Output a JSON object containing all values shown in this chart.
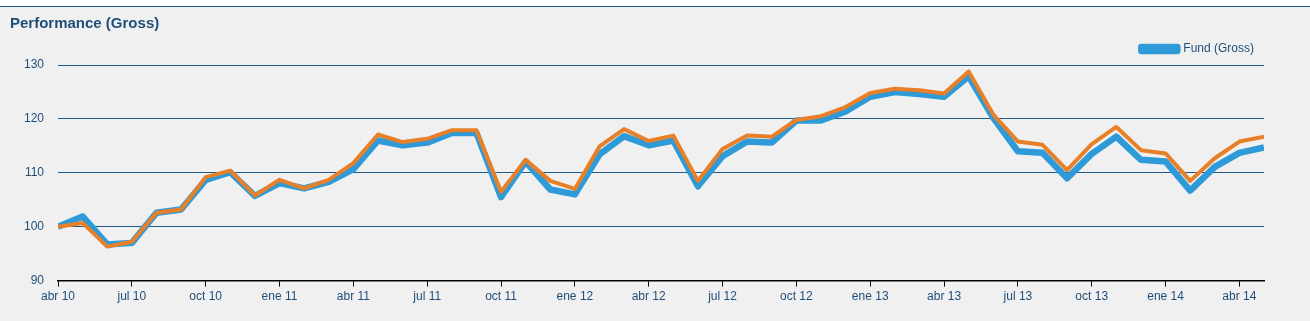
{
  "chart_data": {
    "type": "line",
    "title": "Performance (Gross)",
    "x": [
      "2010-04",
      "2010-05",
      "2010-06",
      "2010-07",
      "2010-08",
      "2010-09",
      "2010-10",
      "2010-11",
      "2010-12",
      "2011-01",
      "2011-02",
      "2011-03",
      "2011-04",
      "2011-05",
      "2011-06",
      "2011-07",
      "2011-08",
      "2011-09",
      "2011-10",
      "2011-11",
      "2011-12",
      "2012-01",
      "2012-02",
      "2012-03",
      "2012-04",
      "2012-05",
      "2012-06",
      "2012-07",
      "2012-08",
      "2012-09",
      "2012-10",
      "2012-11",
      "2012-12",
      "2013-01",
      "2013-02",
      "2013-03",
      "2013-04",
      "2013-05",
      "2013-06",
      "2013-07",
      "2013-08",
      "2013-09",
      "2013-10",
      "2013-11",
      "2013-12",
      "2014-01",
      "2014-02",
      "2014-03",
      "2014-04",
      "2014-05"
    ],
    "series": [
      {
        "name": "Fund (Gross)",
        "color": "#2e9ad8",
        "values": [
          100,
          101.9,
          96.7,
          97.0,
          102.6,
          103.2,
          108.7,
          110.1,
          105.7,
          108.1,
          107.1,
          108.3,
          110.7,
          116.0,
          115.1,
          115.6,
          117.4,
          117.4,
          105.5,
          112.1,
          106.9,
          106.0,
          113.4,
          116.8,
          115.1,
          116.0,
          107.5,
          113.1,
          115.8,
          115.6,
          119.7,
          119.7,
          121.4,
          124.1,
          125.0,
          124.6,
          124.1,
          127.9,
          120.2,
          114.0,
          113.7,
          109.0,
          113.5,
          116.7,
          112.4,
          112.1,
          106.7,
          111.1,
          113.7,
          114.7
        ]
      },
      {
        "color": "#e8802a",
        "values": [
          100,
          100.7,
          96.3,
          97.2,
          102.6,
          103.2,
          109.2,
          110.4,
          105.8,
          108.7,
          107.1,
          108.7,
          111.8,
          117.1,
          115.7,
          116.3,
          117.9,
          117.9,
          106.5,
          112.4,
          108.5,
          107.0,
          114.9,
          118.1,
          115.9,
          116.9,
          108.5,
          114.4,
          116.9,
          116.7,
          119.8,
          120.5,
          122.2,
          124.8,
          125.6,
          125.3,
          124.7,
          128.8,
          120.8,
          115.8,
          115.2,
          110.5,
          115.3,
          118.5,
          114.2,
          113.6,
          108.5,
          112.7,
          115.8,
          116.7
        ]
      }
    ],
    "xlim": [
      "2010-04",
      "2014-05"
    ],
    "xticks": [
      {
        "value": "2010-04",
        "label": "abr 10"
      },
      {
        "value": "2010-07",
        "label": "jul 10"
      },
      {
        "value": "2010-10",
        "label": "oct 10"
      },
      {
        "value": "2011-01",
        "label": "ene 11"
      },
      {
        "value": "2011-04",
        "label": "abr 11"
      },
      {
        "value": "2011-07",
        "label": "jul 11"
      },
      {
        "value": "2011-10",
        "label": "oct 11"
      },
      {
        "value": "2012-01",
        "label": "ene 12"
      },
      {
        "value": "2012-04",
        "label": "abr 12"
      },
      {
        "value": "2012-07",
        "label": "jul 12"
      },
      {
        "value": "2012-10",
        "label": "oct 12"
      },
      {
        "value": "2013-01",
        "label": "ene 13"
      },
      {
        "value": "2013-04",
        "label": "abr 13"
      },
      {
        "value": "2013-07",
        "label": "jul 13"
      },
      {
        "value": "2013-10",
        "label": "oct 13"
      },
      {
        "value": "2014-01",
        "label": "ene 14"
      },
      {
        "value": "2014-04",
        "label": "abr 14"
      }
    ],
    "ylim": [
      90,
      130
    ],
    "yticks": [
      90,
      100,
      110,
      120,
      130
    ],
    "grid": "y",
    "legend": "top right",
    "marker": "none",
    "line_style": "solid"
  }
}
